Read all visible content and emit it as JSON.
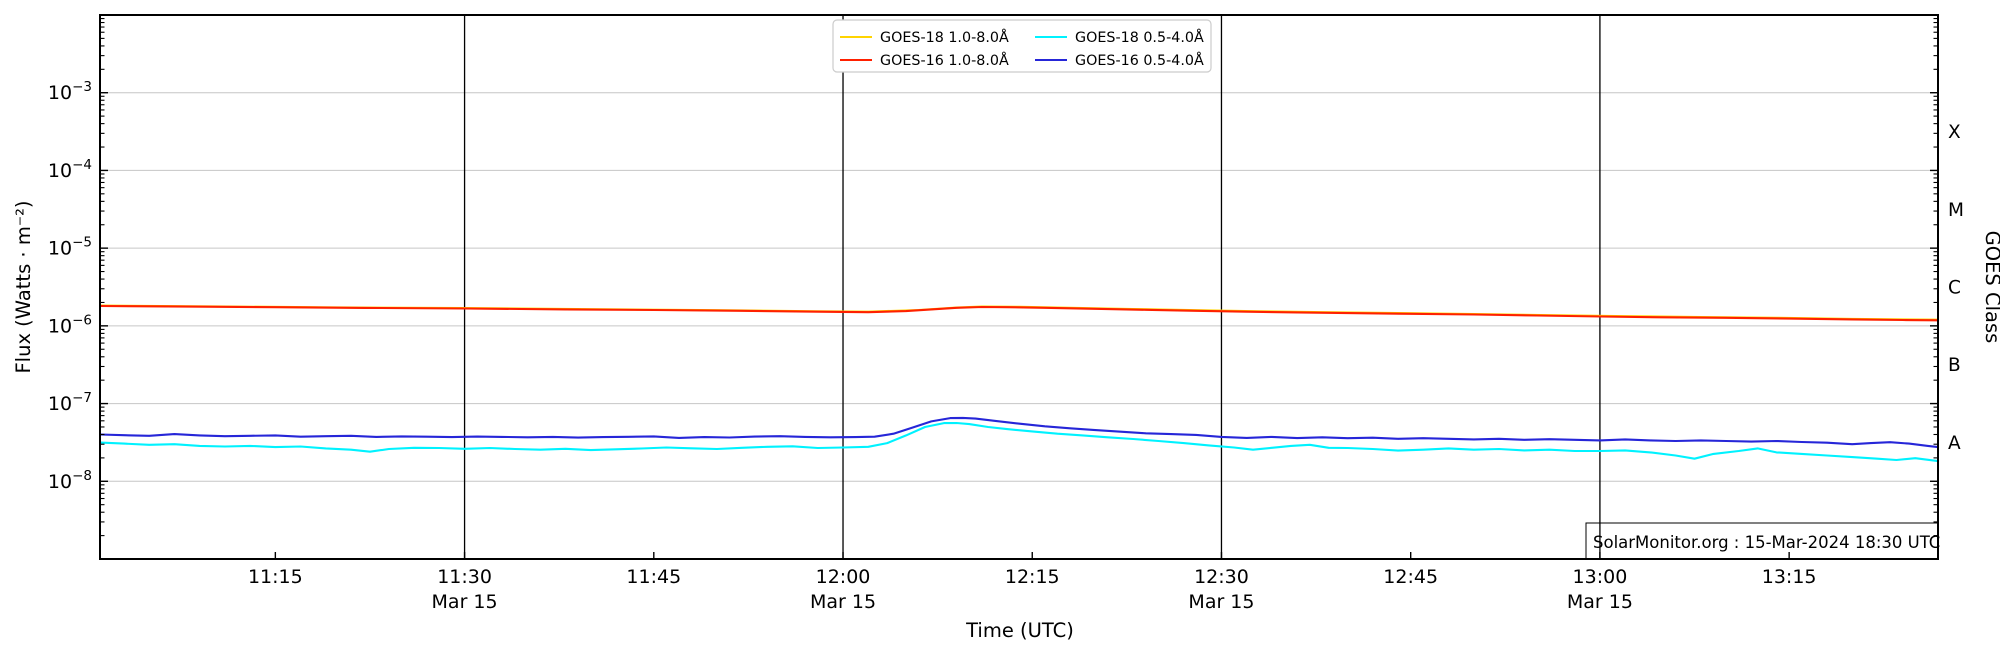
{
  "figure": {
    "source_note": "SolarMonitor.org : 15-Mar-2024 18:30 UTC"
  },
  "chart_data": {
    "type": "line",
    "title": "",
    "xlabel": "Time (UTC)",
    "ylabel_left": "Flux (Watts · m⁻²)",
    "ylabel_right": "GOES Class",
    "x_unit": "minutes after 11:00 UTC, 15-Mar-2024",
    "xlim": [
      1.1,
      146.8
    ],
    "ylim_exp": [
      -2,
      -9
    ],
    "y_major_tick_exponents": [
      -3,
      -4,
      -5,
      -6,
      -7,
      -8
    ],
    "grid": {
      "horizontal_decades": true,
      "color": "#c6c6c6",
      "dateline_color": "#000000"
    },
    "x_ticks": [
      {
        "t": 15,
        "label": "11:15"
      },
      {
        "t": 30,
        "label": "11:30",
        "date": "Mar 15",
        "dateline": true
      },
      {
        "t": 45,
        "label": "11:45"
      },
      {
        "t": 60,
        "label": "12:00",
        "date": "Mar 15",
        "dateline": true
      },
      {
        "t": 75,
        "label": "12:15"
      },
      {
        "t": 90,
        "label": "12:30",
        "date": "Mar 15",
        "dateline": true
      },
      {
        "t": 105,
        "label": "12:45"
      },
      {
        "t": 120,
        "label": "13:00",
        "date": "Mar 15",
        "dateline": true
      },
      {
        "t": 135,
        "label": "13:15"
      }
    ],
    "goes_classes": [
      {
        "label": "X",
        "log_center": -3.5
      },
      {
        "label": "M",
        "log_center": -4.5
      },
      {
        "label": "C",
        "log_center": -5.5
      },
      {
        "label": "B",
        "log_center": -6.5
      },
      {
        "label": "A",
        "log_center": -7.5
      }
    ],
    "legend_position": "upper center",
    "legend_grid": [
      [
        0,
        2
      ],
      [
        1,
        3
      ]
    ],
    "series": [
      {
        "name": "GOES-18 1.0-8.0Å",
        "color": "#ffd400",
        "points": [
          [
            1.1,
            1.82e-06
          ],
          [
            10,
            1.78e-06
          ],
          [
            20,
            1.73e-06
          ],
          [
            30,
            1.69e-06
          ],
          [
            40,
            1.64e-06
          ],
          [
            50,
            1.59e-06
          ],
          [
            58,
            1.54e-06
          ],
          [
            62,
            1.52e-06
          ],
          [
            66,
            1.6e-06
          ],
          [
            69,
            1.72e-06
          ],
          [
            71,
            1.77e-06
          ],
          [
            74,
            1.76e-06
          ],
          [
            78,
            1.71e-06
          ],
          [
            83,
            1.65e-06
          ],
          [
            88,
            1.59e-06
          ],
          [
            93,
            1.54e-06
          ],
          [
            98,
            1.5e-06
          ],
          [
            104,
            1.46e-06
          ],
          [
            110,
            1.42e-06
          ],
          [
            116,
            1.37e-06
          ],
          [
            122,
            1.33e-06
          ],
          [
            128,
            1.3e-06
          ],
          [
            134,
            1.27e-06
          ],
          [
            140,
            1.23e-06
          ],
          [
            146.8,
            1.2e-06
          ]
        ]
      },
      {
        "name": "GOES-16 1.0-8.0Å",
        "color": "#ff2000",
        "points": [
          [
            1.1,
            1.8e-06
          ],
          [
            8,
            1.77e-06
          ],
          [
            15,
            1.74e-06
          ],
          [
            22,
            1.7e-06
          ],
          [
            30,
            1.67e-06
          ],
          [
            38,
            1.63e-06
          ],
          [
            45,
            1.6e-06
          ],
          [
            52,
            1.56e-06
          ],
          [
            58,
            1.52e-06
          ],
          [
            62,
            1.5e-06
          ],
          [
            65,
            1.55e-06
          ],
          [
            67,
            1.63e-06
          ],
          [
            69,
            1.71e-06
          ],
          [
            71,
            1.75e-06
          ],
          [
            73,
            1.74e-06
          ],
          [
            76,
            1.71e-06
          ],
          [
            80,
            1.66e-06
          ],
          [
            84,
            1.61e-06
          ],
          [
            88,
            1.56e-06
          ],
          [
            92,
            1.52e-06
          ],
          [
            96,
            1.49e-06
          ],
          [
            100,
            1.46e-06
          ],
          [
            105,
            1.43e-06
          ],
          [
            110,
            1.4e-06
          ],
          [
            115,
            1.36e-06
          ],
          [
            120,
            1.32e-06
          ],
          [
            125,
            1.29e-06
          ],
          [
            130,
            1.27e-06
          ],
          [
            135,
            1.24e-06
          ],
          [
            140,
            1.21e-06
          ],
          [
            144,
            1.19e-06
          ],
          [
            146.8,
            1.18e-06
          ]
        ]
      },
      {
        "name": "GOES-18 0.5-4.0Å",
        "color": "#00f2ff",
        "points": [
          [
            1.1,
            3.15e-08
          ],
          [
            3,
            3.05e-08
          ],
          [
            5,
            2.95e-08
          ],
          [
            7,
            3e-08
          ],
          [
            9,
            2.85e-08
          ],
          [
            11,
            2.8e-08
          ],
          [
            13,
            2.85e-08
          ],
          [
            15,
            2.75e-08
          ],
          [
            17,
            2.8e-08
          ],
          [
            19,
            2.65e-08
          ],
          [
            21,
            2.55e-08
          ],
          [
            22.5,
            2.4e-08
          ],
          [
            24,
            2.6e-08
          ],
          [
            26,
            2.7e-08
          ],
          [
            28,
            2.68e-08
          ],
          [
            30,
            2.62e-08
          ],
          [
            32,
            2.68e-08
          ],
          [
            34,
            2.6e-08
          ],
          [
            36,
            2.55e-08
          ],
          [
            38,
            2.62e-08
          ],
          [
            40,
            2.52e-08
          ],
          [
            42,
            2.58e-08
          ],
          [
            44,
            2.64e-08
          ],
          [
            46,
            2.72e-08
          ],
          [
            48,
            2.66e-08
          ],
          [
            50,
            2.6e-08
          ],
          [
            52,
            2.7e-08
          ],
          [
            54,
            2.78e-08
          ],
          [
            56,
            2.82e-08
          ],
          [
            58,
            2.68e-08
          ],
          [
            60,
            2.72e-08
          ],
          [
            62,
            2.78e-08
          ],
          [
            63.5,
            3.1e-08
          ],
          [
            65,
            3.9e-08
          ],
          [
            66.5,
            5e-08
          ],
          [
            68,
            5.6e-08
          ],
          [
            69,
            5.62e-08
          ],
          [
            70,
            5.45e-08
          ],
          [
            71.5,
            5e-08
          ],
          [
            73,
            4.7e-08
          ],
          [
            75,
            4.38e-08
          ],
          [
            77,
            4.1e-08
          ],
          [
            79,
            3.9e-08
          ],
          [
            81,
            3.68e-08
          ],
          [
            83,
            3.5e-08
          ],
          [
            85,
            3.3e-08
          ],
          [
            87,
            3.1e-08
          ],
          [
            89,
            2.9e-08
          ],
          [
            91,
            2.72e-08
          ],
          [
            92.5,
            2.55e-08
          ],
          [
            94,
            2.7e-08
          ],
          [
            95.5,
            2.85e-08
          ],
          [
            97,
            2.95e-08
          ],
          [
            98.5,
            2.7e-08
          ],
          [
            100,
            2.68e-08
          ],
          [
            102,
            2.6e-08
          ],
          [
            104,
            2.48e-08
          ],
          [
            106,
            2.55e-08
          ],
          [
            108,
            2.65e-08
          ],
          [
            110,
            2.55e-08
          ],
          [
            112,
            2.6e-08
          ],
          [
            114,
            2.5e-08
          ],
          [
            116,
            2.55e-08
          ],
          [
            118,
            2.45e-08
          ],
          [
            120,
            2.45e-08
          ],
          [
            122,
            2.5e-08
          ],
          [
            124,
            2.35e-08
          ],
          [
            126,
            2.15e-08
          ],
          [
            127.5,
            1.95e-08
          ],
          [
            129,
            2.25e-08
          ],
          [
            131,
            2.45e-08
          ],
          [
            132.5,
            2.65e-08
          ],
          [
            134,
            2.35e-08
          ],
          [
            136,
            2.25e-08
          ],
          [
            138,
            2.15e-08
          ],
          [
            140,
            2.05e-08
          ],
          [
            142,
            1.95e-08
          ],
          [
            143.5,
            1.88e-08
          ],
          [
            145,
            1.98e-08
          ],
          [
            146.8,
            1.82e-08
          ]
        ]
      },
      {
        "name": "GOES-16 0.5-4.0Å",
        "color": "#2626d8",
        "points": [
          [
            1.1,
            4e-08
          ],
          [
            3,
            3.92e-08
          ],
          [
            5,
            3.85e-08
          ],
          [
            7,
            4.05e-08
          ],
          [
            9,
            3.9e-08
          ],
          [
            11,
            3.8e-08
          ],
          [
            13,
            3.85e-08
          ],
          [
            15,
            3.9e-08
          ],
          [
            17,
            3.75e-08
          ],
          [
            19,
            3.8e-08
          ],
          [
            21,
            3.85e-08
          ],
          [
            23,
            3.72e-08
          ],
          [
            25,
            3.78e-08
          ],
          [
            27,
            3.75e-08
          ],
          [
            29,
            3.7e-08
          ],
          [
            31,
            3.76e-08
          ],
          [
            33,
            3.72e-08
          ],
          [
            35,
            3.68e-08
          ],
          [
            37,
            3.72e-08
          ],
          [
            39,
            3.65e-08
          ],
          [
            41,
            3.7e-08
          ],
          [
            43,
            3.74e-08
          ],
          [
            45,
            3.78e-08
          ],
          [
            47,
            3.62e-08
          ],
          [
            49,
            3.7e-08
          ],
          [
            51,
            3.66e-08
          ],
          [
            53,
            3.76e-08
          ],
          [
            55,
            3.8e-08
          ],
          [
            57,
            3.72e-08
          ],
          [
            59,
            3.68e-08
          ],
          [
            61,
            3.7e-08
          ],
          [
            62.5,
            3.75e-08
          ],
          [
            64,
            4.1e-08
          ],
          [
            65.5,
            4.9e-08
          ],
          [
            67,
            5.9e-08
          ],
          [
            68.5,
            6.5e-08
          ],
          [
            69.5,
            6.55e-08
          ],
          [
            70.5,
            6.4e-08
          ],
          [
            72,
            6e-08
          ],
          [
            74,
            5.5e-08
          ],
          [
            76,
            5.1e-08
          ],
          [
            78,
            4.8e-08
          ],
          [
            80,
            4.55e-08
          ],
          [
            82,
            4.35e-08
          ],
          [
            84,
            4.15e-08
          ],
          [
            86,
            4.05e-08
          ],
          [
            88,
            3.95e-08
          ],
          [
            90,
            3.72e-08
          ],
          [
            92,
            3.62e-08
          ],
          [
            94,
            3.72e-08
          ],
          [
            96,
            3.6e-08
          ],
          [
            98,
            3.68e-08
          ],
          [
            100,
            3.58e-08
          ],
          [
            102,
            3.64e-08
          ],
          [
            104,
            3.52e-08
          ],
          [
            106,
            3.58e-08
          ],
          [
            108,
            3.52e-08
          ],
          [
            110,
            3.46e-08
          ],
          [
            112,
            3.52e-08
          ],
          [
            114,
            3.42e-08
          ],
          [
            116,
            3.48e-08
          ],
          [
            118,
            3.42e-08
          ],
          [
            120,
            3.36e-08
          ],
          [
            122,
            3.46e-08
          ],
          [
            124,
            3.36e-08
          ],
          [
            126,
            3.3e-08
          ],
          [
            128,
            3.36e-08
          ],
          [
            130,
            3.3e-08
          ],
          [
            132,
            3.24e-08
          ],
          [
            134,
            3.3e-08
          ],
          [
            136,
            3.2e-08
          ],
          [
            138,
            3.14e-08
          ],
          [
            140,
            3e-08
          ],
          [
            141.5,
            3.1e-08
          ],
          [
            143,
            3.18e-08
          ],
          [
            144.5,
            3.05e-08
          ],
          [
            146,
            2.85e-08
          ],
          [
            146.8,
            2.75e-08
          ]
        ]
      }
    ]
  }
}
